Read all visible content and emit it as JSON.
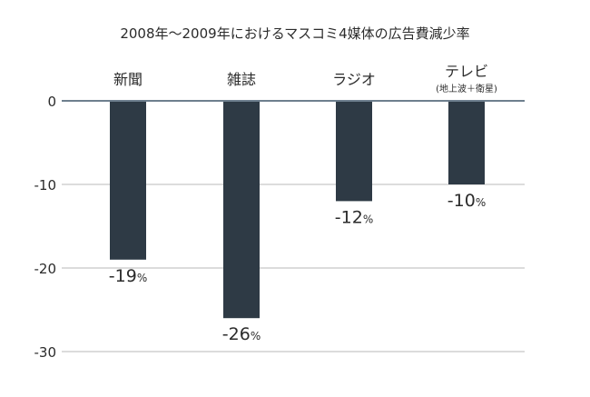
{
  "chart_data": {
    "type": "bar",
    "title": "2008年〜2009年におけるマスコミ4媒体の広告費減少率",
    "categories": [
      {
        "label": "新聞",
        "sublabel": ""
      },
      {
        "label": "雑誌",
        "sublabel": ""
      },
      {
        "label": "ラジオ",
        "sublabel": ""
      },
      {
        "label": "テレビ",
        "sublabel": "(地上波＋衛星)"
      }
    ],
    "values": [
      -19,
      -26,
      -12,
      -10
    ],
    "data_labels": [
      "-19",
      "-26",
      "-12",
      "-10"
    ],
    "value_suffix": "%",
    "ylim": [
      -30,
      0
    ],
    "yticks": [
      0,
      -10,
      -20,
      -30
    ],
    "ytick_labels": [
      "0",
      "-10",
      "-20",
      "-30"
    ],
    "xlabel": "",
    "ylabel": "",
    "grid": true,
    "colors": {
      "bar": "#2e3a45",
      "grid": "#b8b8b8",
      "zero_line": "#6e7f8e",
      "text": "#2b2b2b"
    }
  }
}
